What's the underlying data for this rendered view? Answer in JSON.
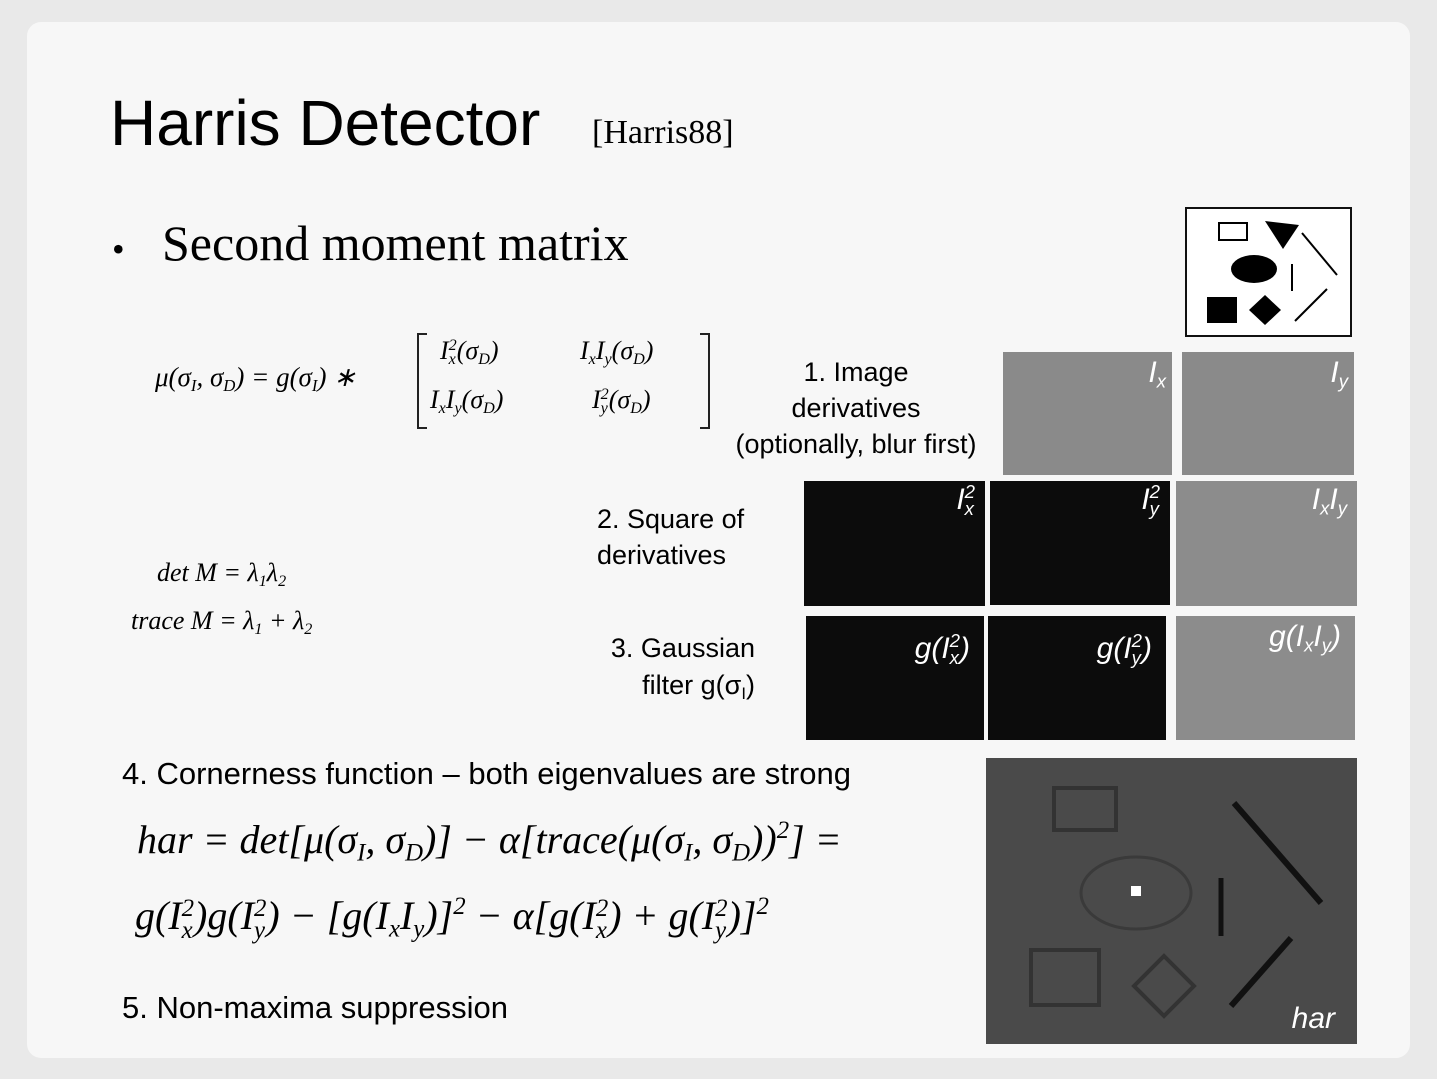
{
  "title": "Harris Detector",
  "citation": "[Harris88]",
  "bullet": "Second moment matrix",
  "equations": {
    "mu": [
      "μ(σ",
      {
        "sub": "I"
      },
      ", σ",
      {
        "sub": "D"
      },
      ") = g(σ",
      {
        "sub": "I"
      },
      ") ∗"
    ],
    "matrix": [
      [
        [
          "I",
          {
            "sup": "2",
            "sub": "x"
          },
          "(σ",
          {
            "sub": "D"
          },
          ")"
        ],
        [
          "I",
          {
            "sub": "x"
          },
          "I",
          {
            "sub": "y"
          },
          "(σ",
          {
            "sub": "D"
          },
          ")"
        ]
      ],
      [
        [
          "I",
          {
            "sub": "x"
          },
          "I",
          {
            "sub": "y"
          },
          "(σ",
          {
            "sub": "D"
          },
          ")"
        ],
        [
          "I",
          {
            "sup": "2",
            "sub": "y"
          },
          "(σ",
          {
            "sub": "D"
          },
          ")"
        ]
      ]
    ],
    "det": [
      "det M = λ",
      {
        "sub": "1"
      },
      "λ",
      {
        "sub": "2"
      }
    ],
    "trace": [
      "trace M = λ",
      {
        "sub": "1"
      },
      " + λ",
      {
        "sub": "2"
      }
    ],
    "har_line1": [
      "har = det[μ(σ",
      {
        "sub": "I"
      },
      ", σ",
      {
        "sub": "D"
      },
      ")] − α[trace(μ(σ",
      {
        "sub": "I"
      },
      ", σ",
      {
        "sub": "D"
      },
      "))",
      {
        "sup": "2"
      },
      "] ="
    ],
    "har_line2": [
      "g(I",
      {
        "sup": "2",
        "sub": "x"
      },
      ")g(I",
      {
        "sup": "2",
        "sub": "y"
      },
      ") − [g(I",
      {
        "sub": "x"
      },
      "I",
      {
        "sub": "y"
      },
      ")]",
      {
        "sup": "2"
      },
      " − α[g(I",
      {
        "sup": "2",
        "sub": "x"
      },
      ") + g(I",
      {
        "sup": "2",
        "sub": "y"
      },
      ")]",
      {
        "sup": "2"
      }
    ]
  },
  "steps": {
    "step1": [
      "1. Image",
      "derivatives",
      "(optionally, blur first)"
    ],
    "step2": [
      "2. Square of",
      "derivatives"
    ],
    "step3": [
      "3. Gaussian",
      [
        "filter g(σ",
        {
          "sub": "I"
        },
        ")"
      ]
    ],
    "step4": "4. Cornerness function – both eigenvalues are strong",
    "step5": "5. Non-maxima suppression"
  },
  "image_labels": {
    "ix": [
      "I",
      {
        "sub": "x"
      }
    ],
    "iy": [
      "I",
      {
        "sub": "y"
      }
    ],
    "ix2": [
      "I",
      {
        "sup": "2",
        "sub": "x"
      }
    ],
    "iy2": [
      "I",
      {
        "sup": "2",
        "sub": "y"
      }
    ],
    "ixiy": [
      "I",
      {
        "sub": "x"
      },
      "I",
      {
        "sub": "y"
      }
    ],
    "g_ix2": [
      "g(I",
      {
        "sup": "2",
        "sub": "x"
      },
      ")"
    ],
    "g_iy2": [
      "g(I",
      {
        "sup": "2",
        "sub": "y"
      },
      ")"
    ],
    "g_ixiy": [
      "g(I",
      {
        "sub": "x"
      },
      "I",
      {
        "sub": "y"
      },
      ")"
    ],
    "har": "har"
  }
}
